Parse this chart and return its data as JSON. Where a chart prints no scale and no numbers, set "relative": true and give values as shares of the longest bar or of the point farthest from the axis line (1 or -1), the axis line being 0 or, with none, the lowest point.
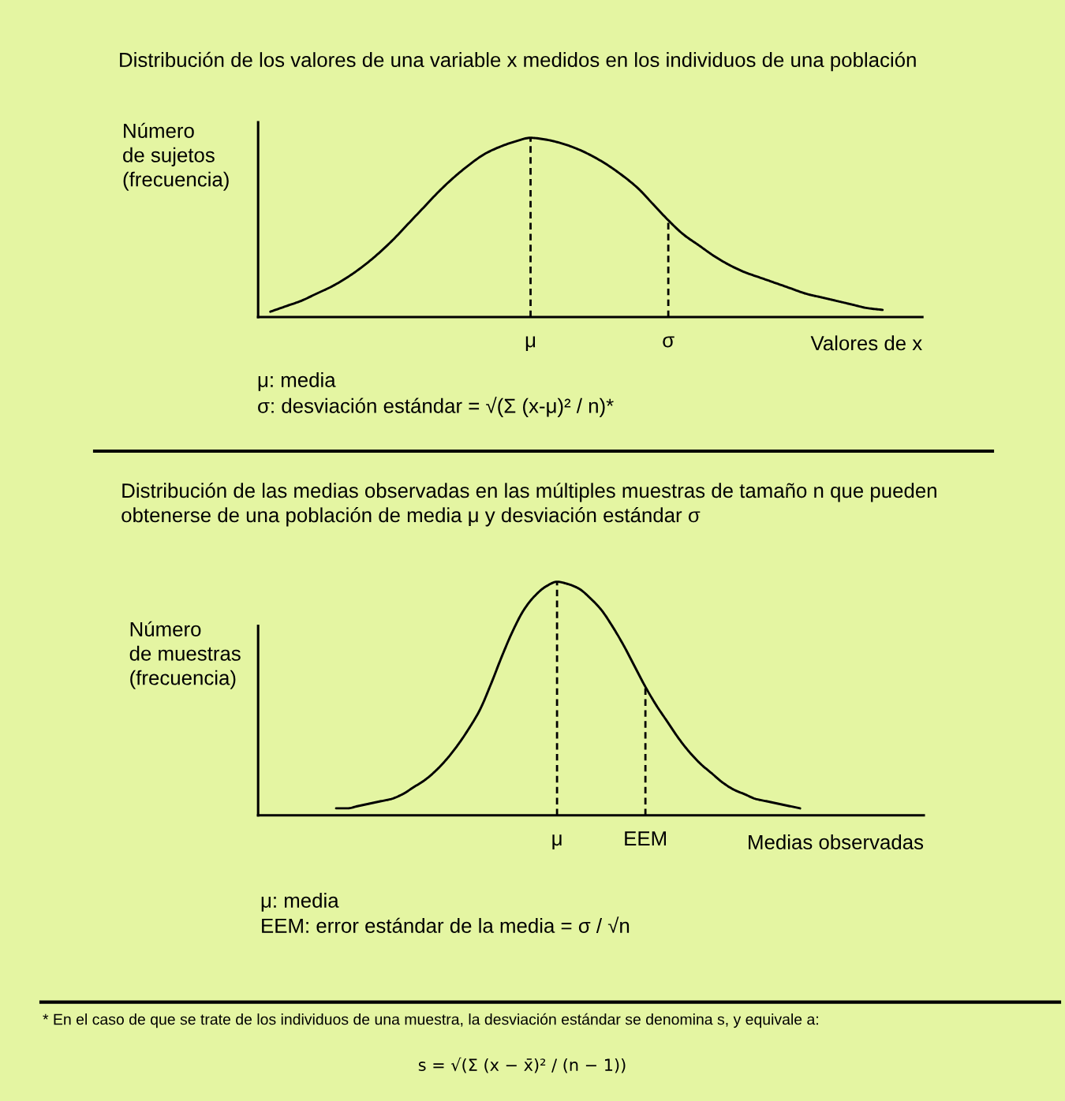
{
  "chart_data": [
    {
      "type": "line",
      "title": "Distribución de los valores de una variable x medidos en los individuos de una población",
      "ylabel": "Número\nde sujetos\n(frecuencia)",
      "xlabel": "Valores de x",
      "relative": true,
      "categories": [
        null,
        null,
        null,
        null,
        null,
        null,
        null,
        null,
        null,
        null,
        null,
        null,
        null,
        null,
        null,
        null,
        null,
        "μ",
        null,
        null,
        null,
        null,
        null,
        null,
        null,
        null,
        "σ",
        null,
        null,
        null,
        null,
        null,
        null,
        null,
        null,
        null,
        null,
        null,
        null,
        null,
        null
      ],
      "color": "#000000",
      "values": [
        0.03,
        0.06,
        0.09,
        0.13,
        0.17,
        0.22,
        0.28,
        0.35,
        0.43,
        0.52,
        0.61,
        0.7,
        0.78,
        0.85,
        0.91,
        0.95,
        0.98,
        1,
        0.99,
        0.97,
        0.94,
        0.9,
        0.85,
        0.79,
        0.72,
        0.63,
        0.54,
        0.46,
        0.4,
        0.34,
        0.29,
        0.25,
        0.22,
        0.19,
        0.16,
        0.13,
        0.11,
        0.09,
        0.07,
        0.05,
        0.04
      ],
      "ref_lines": [
        {
          "axis": "x",
          "value": "μ",
          "line_style": "dashed",
          "color": "#000000"
        },
        {
          "axis": "x",
          "value": "σ",
          "line_style": "dashed",
          "color": "#000000"
        }
      ],
      "annotations": [
        "μ: media",
        "σ: desviación estándar = √(Σ (x-μ)² / n)*"
      ]
    },
    {
      "type": "line",
      "title": "Distribución de las medias observadas en las múltiples muestras de tamaño n que pueden\nobtenerse de una población de media μ y desviación estándar σ",
      "ylabel": "Número\nde muestras\n(frecuencia)",
      "xlabel": "Medias observadas",
      "relative": true,
      "categories": [
        null,
        null,
        null,
        null,
        null,
        null,
        null,
        null,
        null,
        null,
        null,
        null,
        null,
        null,
        null,
        null,
        null,
        null,
        null,
        null,
        "μ",
        null,
        null,
        null,
        null,
        null,
        null,
        null,
        "EEM",
        null,
        null,
        null,
        null,
        null,
        null,
        null,
        null,
        null,
        null,
        null,
        null,
        null,
        null
      ],
      "color": "#000000",
      "values": [
        0.03,
        0.03,
        0.04,
        0.05,
        0.06,
        0.07,
        0.09,
        0.12,
        0.15,
        0.19,
        0.24,
        0.3,
        0.37,
        0.45,
        0.56,
        0.68,
        0.79,
        0.88,
        0.94,
        0.98,
        1,
        0.99,
        0.97,
        0.93,
        0.88,
        0.81,
        0.73,
        0.64,
        0.55,
        0.47,
        0.4,
        0.33,
        0.27,
        0.22,
        0.18,
        0.14,
        0.11,
        0.09,
        0.07,
        0.06,
        0.05,
        0.04,
        0.03
      ],
      "ref_lines": [
        {
          "axis": "x",
          "value": "μ",
          "line_style": "dashed",
          "color": "#000000"
        },
        {
          "axis": "x",
          "value": "EEM",
          "line_style": "dashed",
          "color": "#000000"
        }
      ],
      "annotations": [
        "μ: media",
        "EEM: error estándar de la media = σ / √n",
        "* En el caso de que se trate de los individuos de una muestra, la desviación estándar se denomina s, y equivale a:",
        "s = √(Σ (x − x̄)² / (n − 1))"
      ]
    }
  ]
}
